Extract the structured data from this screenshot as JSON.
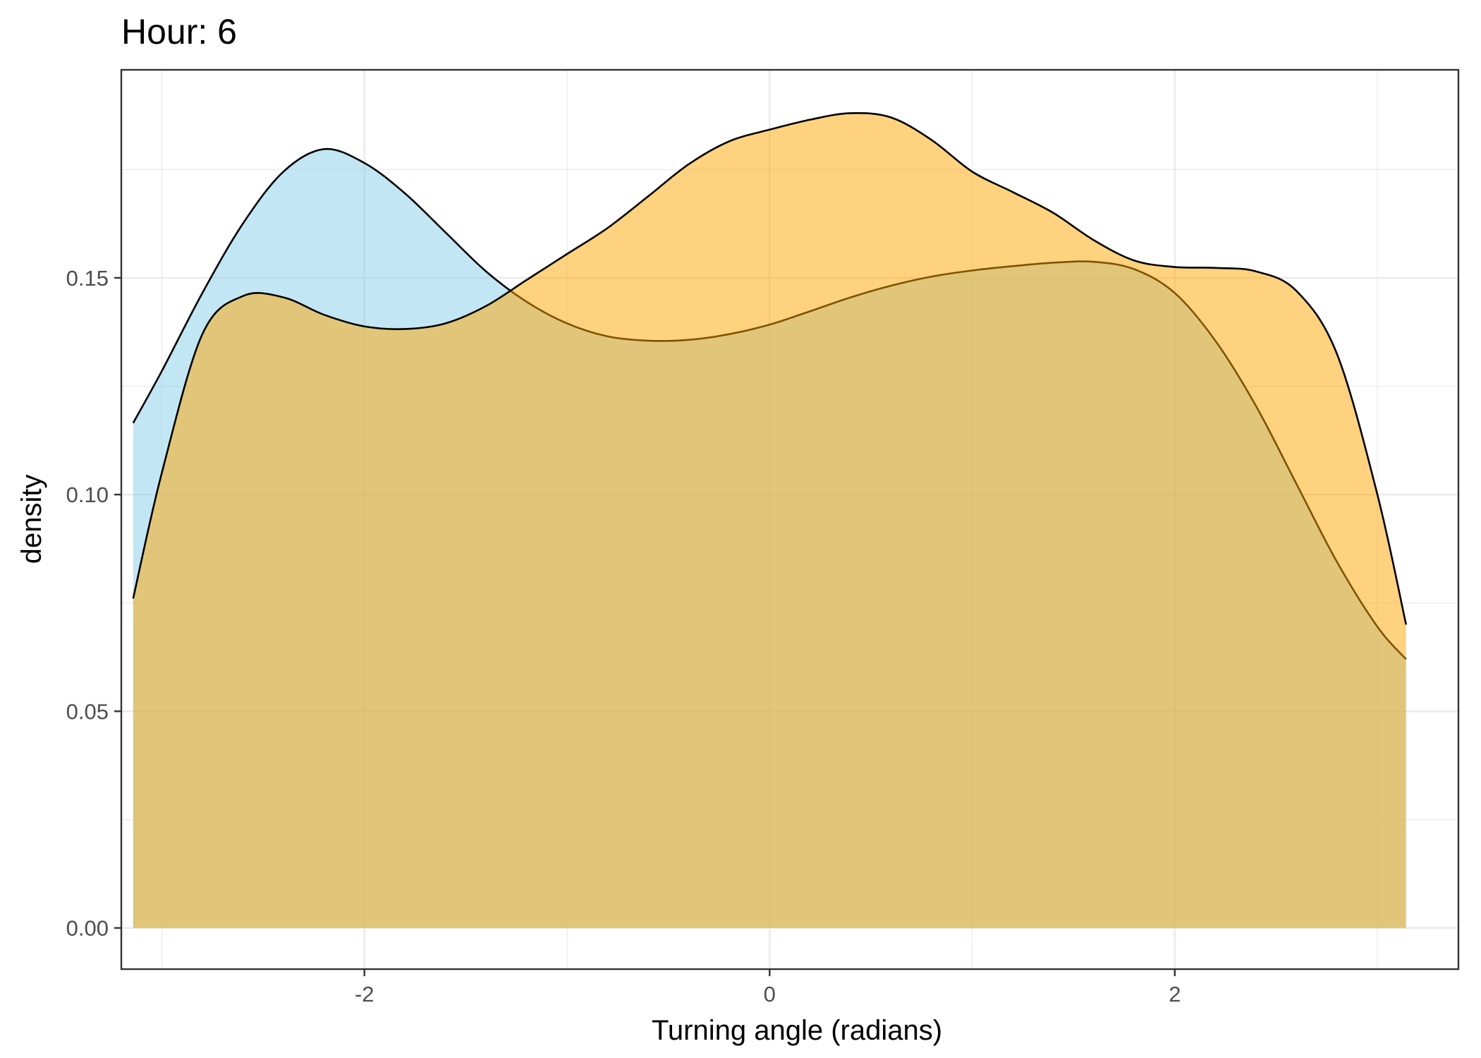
{
  "chart_data": {
    "type": "area",
    "title": "Hour: 6",
    "xlabel": "Turning angle (radians)",
    "ylabel": "density",
    "xlim": [
      -3.2,
      3.4
    ],
    "ylim": [
      -0.0095,
      0.198
    ],
    "x_ticks": [
      {
        "value": -2,
        "label": "-2"
      },
      {
        "value": 0,
        "label": "0"
      },
      {
        "value": 2,
        "label": "2"
      }
    ],
    "x_minor_ticks": [
      -3,
      -1,
      1,
      3
    ],
    "y_ticks": [
      {
        "value": 0.0,
        "label": "0.00"
      },
      {
        "value": 0.05,
        "label": "0.05"
      },
      {
        "value": 0.1,
        "label": "0.10"
      },
      {
        "value": 0.15,
        "label": "0.15"
      }
    ],
    "y_minor_ticks": [
      0.025,
      0.075,
      0.125,
      0.175
    ],
    "grid": true,
    "legend": "none",
    "series": [
      {
        "color": "#87CEEB",
        "fill_opacity": 0.5,
        "points": [
          [
            -3.1416,
            0.1165
          ],
          [
            -3.0,
            0.1285
          ],
          [
            -2.8,
            0.1465
          ],
          [
            -2.6,
            0.1625
          ],
          [
            -2.4,
            0.1745
          ],
          [
            -2.2,
            0.1797
          ],
          [
            -2.0,
            0.1765
          ],
          [
            -1.8,
            0.1695
          ],
          [
            -1.6,
            0.1605
          ],
          [
            -1.4,
            0.1515
          ],
          [
            -1.2,
            0.1445
          ],
          [
            -1.0,
            0.1395
          ],
          [
            -0.8,
            0.1365
          ],
          [
            -0.6,
            0.1355
          ],
          [
            -0.4,
            0.1357
          ],
          [
            -0.2,
            0.137
          ],
          [
            0.0,
            0.1392
          ],
          [
            0.2,
            0.1423
          ],
          [
            0.4,
            0.1455
          ],
          [
            0.6,
            0.1482
          ],
          [
            0.8,
            0.1503
          ],
          [
            1.0,
            0.1517
          ],
          [
            1.2,
            0.1527
          ],
          [
            1.4,
            0.1535
          ],
          [
            1.6,
            0.1537
          ],
          [
            1.8,
            0.152
          ],
          [
            2.0,
            0.1465
          ],
          [
            2.2,
            0.1355
          ],
          [
            2.4,
            0.1205
          ],
          [
            2.6,
            0.1025
          ],
          [
            2.8,
            0.0845
          ],
          [
            3.0,
            0.0695
          ],
          [
            3.1416,
            0.062
          ]
        ]
      },
      {
        "color": "#FFA500",
        "fill_opacity": 0.5,
        "points": [
          [
            -3.1416,
            0.076
          ],
          [
            -3.0,
            0.105
          ],
          [
            -2.8,
            0.137
          ],
          [
            -2.6,
            0.1458
          ],
          [
            -2.4,
            0.1455
          ],
          [
            -2.2,
            0.1415
          ],
          [
            -2.0,
            0.1388
          ],
          [
            -1.8,
            0.1382
          ],
          [
            -1.6,
            0.1395
          ],
          [
            -1.4,
            0.1435
          ],
          [
            -1.2,
            0.1495
          ],
          [
            -1.0,
            0.1555
          ],
          [
            -0.8,
            0.1615
          ],
          [
            -0.6,
            0.1688
          ],
          [
            -0.4,
            0.1762
          ],
          [
            -0.2,
            0.1815
          ],
          [
            0.0,
            0.1842
          ],
          [
            0.2,
            0.1865
          ],
          [
            0.4,
            0.188
          ],
          [
            0.6,
            0.187
          ],
          [
            0.8,
            0.1818
          ],
          [
            1.0,
            0.1745
          ],
          [
            1.2,
            0.1698
          ],
          [
            1.4,
            0.165
          ],
          [
            1.6,
            0.1587
          ],
          [
            1.8,
            0.154
          ],
          [
            2.0,
            0.1525
          ],
          [
            2.2,
            0.1523
          ],
          [
            2.4,
            0.1515
          ],
          [
            2.6,
            0.147
          ],
          [
            2.8,
            0.1325
          ],
          [
            3.0,
            0.1
          ],
          [
            3.1416,
            0.07
          ]
        ]
      }
    ]
  }
}
